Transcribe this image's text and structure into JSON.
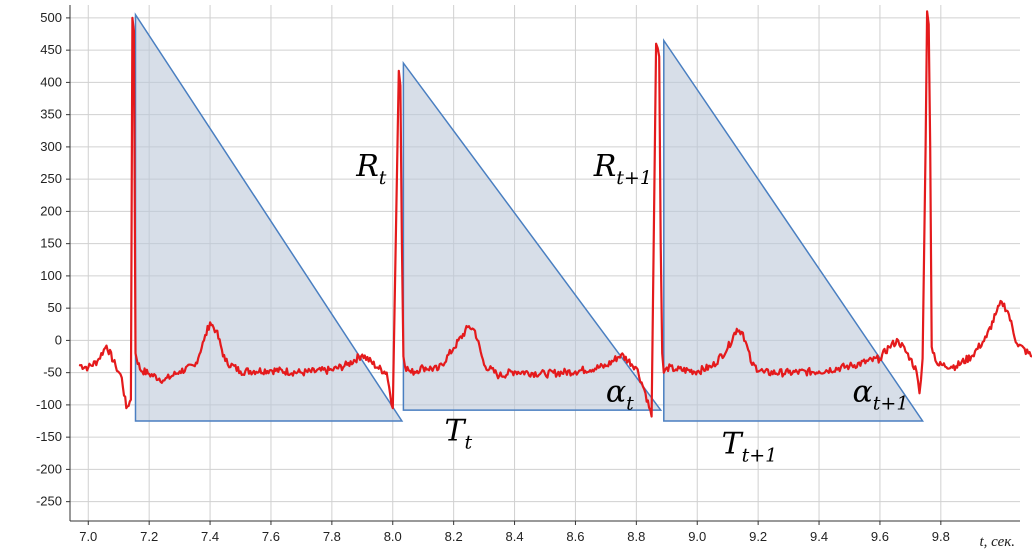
{
  "chart_data": {
    "type": "line",
    "title": "",
    "xlabel": "t, сек.",
    "ylabel": "",
    "xlim": [
      6.94,
      10.06
    ],
    "ylim": [
      -280,
      520
    ],
    "xticks": [
      7.0,
      7.2,
      7.4,
      7.6,
      7.8,
      8.0,
      8.2,
      8.4,
      8.6,
      8.8,
      9.0,
      9.2,
      9.4,
      9.6,
      9.8
    ],
    "xtick_labels": [
      "7.0",
      "7.2",
      "7.4",
      "7.6",
      "7.8",
      "8.0",
      "8.2",
      "8.4",
      "8.6",
      "8.8",
      "9.0",
      "9.2",
      "9.4",
      "9.6",
      "9.8"
    ],
    "yticks": [
      500,
      450,
      400,
      350,
      300,
      250,
      200,
      150,
      100,
      50,
      0,
      -50,
      -100,
      -150,
      -200,
      -250
    ],
    "ytick_labels": [
      "500",
      "450",
      "400",
      "350",
      "300",
      "250",
      "200",
      "150",
      "100",
      "50",
      "0",
      "-50",
      "-100",
      "-150",
      "-200",
      "-250"
    ],
    "grid": true,
    "series": [
      {
        "color": "#e41a1c",
        "x": [
          6.97,
          7.0,
          7.03,
          7.06,
          7.09,
          7.11,
          7.125,
          7.14,
          7.145,
          7.15,
          7.155,
          7.17,
          7.2,
          7.25,
          7.3,
          7.35,
          7.38,
          7.4,
          7.42,
          7.45,
          7.5,
          7.6,
          7.7,
          7.8,
          7.85,
          7.9,
          7.95,
          7.98,
          8.0,
          8.02,
          8.025,
          8.03,
          8.035,
          8.04,
          8.06,
          8.1,
          8.15,
          8.2,
          8.25,
          8.27,
          8.3,
          8.35,
          8.4,
          8.5,
          8.6,
          8.7,
          8.75,
          8.8,
          8.83,
          8.85,
          8.865,
          8.875,
          8.88,
          8.885,
          8.89,
          8.895,
          8.9,
          8.93,
          9.0,
          9.05,
          9.1,
          9.13,
          9.15,
          9.18,
          9.22,
          9.3,
          9.4,
          9.5,
          9.6,
          9.63,
          9.66,
          9.7,
          9.72,
          9.73,
          9.74,
          9.75,
          9.755,
          9.76,
          9.765,
          9.77,
          9.79,
          9.85,
          9.9,
          9.95,
          9.98,
          10.0,
          10.02,
          10.05,
          10.1,
          10.15
        ],
        "y": [
          -38,
          -42,
          -32,
          -8,
          -40,
          -58,
          -105,
          -92,
          500,
          480,
          -20,
          -45,
          -52,
          -62,
          -48,
          -40,
          0,
          28,
          15,
          -32,
          -48,
          -46,
          -50,
          -46,
          -38,
          -22,
          -42,
          -50,
          -105,
          418,
          395,
          150,
          -25,
          -40,
          -50,
          -42,
          -45,
          -12,
          22,
          15,
          -38,
          -55,
          -48,
          -52,
          -48,
          -40,
          -22,
          -42,
          -82,
          -118,
          460,
          440,
          150,
          -20,
          -50,
          -45,
          -42,
          -45,
          -48,
          -40,
          -12,
          18,
          12,
          -38,
          -50,
          -50,
          -48,
          -40,
          -28,
          -10,
          0,
          -28,
          -48,
          -82,
          -28,
          300,
          510,
          490,
          300,
          -10,
          -38,
          -40,
          -25,
          5,
          40,
          60,
          45,
          -5,
          -25,
          -18
        ]
      }
    ],
    "triangles": [
      {
        "x": [
          7.155,
          7.155,
          8.03
        ],
        "y": [
          505,
          -125,
          -125
        ]
      },
      {
        "x": [
          8.035,
          8.035,
          8.88
        ],
        "y": [
          430,
          -108,
          -108
        ]
      },
      {
        "x": [
          8.89,
          8.89,
          9.74
        ],
        "y": [
          465,
          -125,
          -125
        ]
      }
    ],
    "annotations": [
      {
        "main": "R",
        "sub": "t",
        "x": 7.88,
        "y": 255
      },
      {
        "main": "R",
        "sub": "t+1",
        "x": 8.66,
        "y": 255
      },
      {
        "main": "α",
        "sub": "t",
        "x": 8.7,
        "y": -95
      },
      {
        "main": "α",
        "sub": "t+1",
        "x": 9.51,
        "y": -95
      },
      {
        "main": "T",
        "sub": "t",
        "x": 8.17,
        "y": -155
      },
      {
        "main": "T",
        "sub": "t+1",
        "x": 9.08,
        "y": -175
      }
    ]
  }
}
